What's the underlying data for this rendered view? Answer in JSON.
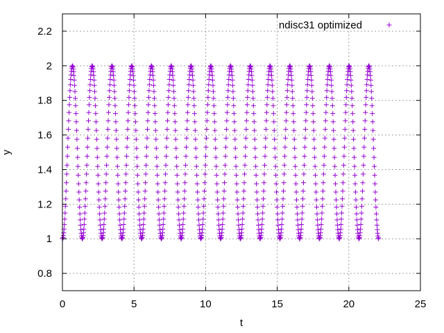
{
  "chart_data": {
    "type": "scatter",
    "title": "",
    "xlabel": "t",
    "ylabel": "y",
    "xlim": [
      0,
      25
    ],
    "ylim": [
      0.7,
      2.3
    ],
    "xticks": [
      0,
      5,
      10,
      15,
      20,
      25
    ],
    "xtick_labels": [
      "0",
      "5",
      "10",
      "15",
      "20",
      "25"
    ],
    "yticks": [
      0.8,
      1,
      1.2,
      1.4,
      1.6,
      1.8,
      2,
      2.2
    ],
    "ytick_labels": [
      "0.8",
      "1",
      "1.2",
      "1.4",
      "1.6",
      "1.8",
      "2",
      "2.2"
    ],
    "grid": true,
    "legend_position": "top-right",
    "marker": "plus",
    "series": [
      {
        "name": "ndisc31 optimized",
        "color": "#9400d3",
        "t_start": 0,
        "t_end": 22.1,
        "oscillation": {
          "min": 1.0,
          "max": 2.0,
          "first_max_at_t": 0.7,
          "period": 1.38,
          "points_per_period": 60
        }
      }
    ]
  }
}
